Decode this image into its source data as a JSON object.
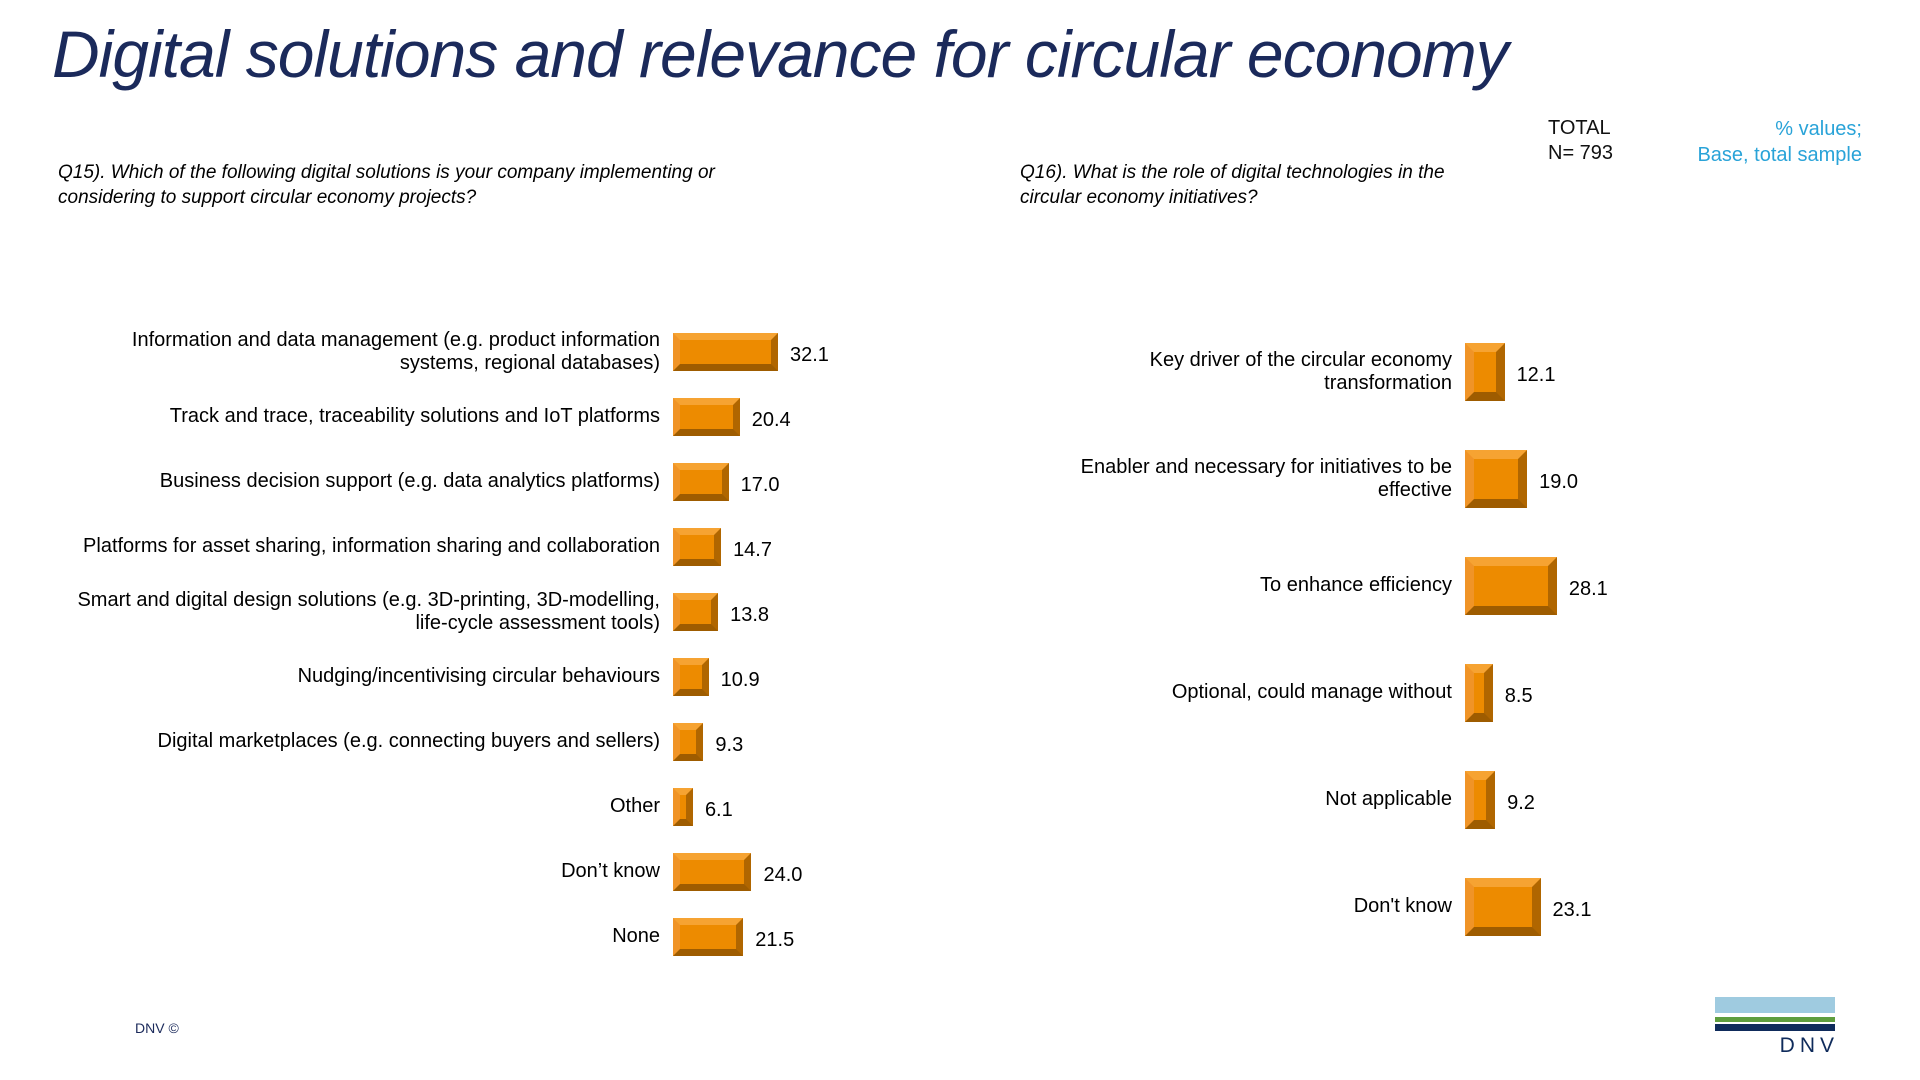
{
  "slide": {
    "title": "Digital solutions and relevance for circular economy",
    "total": {
      "label": "TOTAL",
      "n": "N= 793"
    },
    "base_note": {
      "line1": "% values;",
      "line2": "Base, total sample"
    },
    "footer": {
      "copyright": "DNV ©"
    },
    "logo": {
      "wordmark": "DNV",
      "stripes": [
        "light-blue",
        "green",
        "navy"
      ]
    }
  },
  "colors": {
    "title_navy": "#1b2a5b",
    "note_cyan": "#29a3d8",
    "bar_orange": "#ed8b00",
    "bar_bevel_light": "#f6a332",
    "bar_bevel_dark": "#9e5c00",
    "logo_light_blue": "#9fcbe0",
    "logo_green": "#5f9e3e",
    "logo_navy": "#0f2b5b"
  },
  "chart_data": [
    {
      "type": "bar",
      "orientation": "horizontal",
      "question": "Q15). Which of the following digital solutions is your company implementing or considering to support circular economy projects?",
      "categories": [
        "Information and data management (e.g. product information systems, regional databases)",
        "Track and trace, traceability solutions and IoT platforms",
        "Business decision support (e.g. data analytics platforms)",
        "Platforms for asset sharing, information sharing and collaboration",
        "Smart and digital design solutions (e.g. 3D-printing, 3D-modelling, life-cycle assessment tools)",
        "Nudging/incentivising circular behaviours",
        "Digital marketplaces (e.g. connecting buyers and sellers)",
        "Other",
        "Don’t know",
        "None"
      ],
      "values": [
        32.1,
        20.4,
        17.0,
        14.7,
        13.8,
        10.9,
        9.3,
        6.1,
        24.0,
        21.5
      ],
      "display_values": [
        "32.1",
        "20.4",
        "17.0",
        "14.7",
        "13.8",
        "10.9",
        "9.3",
        "6.1",
        "24.0",
        "21.5"
      ],
      "value_unit": "%",
      "axis": "none",
      "xlim": [
        0,
        35
      ]
    },
    {
      "type": "bar",
      "orientation": "horizontal",
      "question": "Q16). What is the role of digital technologies in the circular economy initiatives?",
      "categories": [
        "Key driver of the circular economy transformation",
        "Enabler and necessary for initiatives to be effective",
        "To enhance efficiency",
        "Optional, could manage without",
        "Not applicable",
        "Don't know"
      ],
      "values": [
        12.1,
        19.0,
        28.1,
        8.5,
        9.2,
        23.1
      ],
      "display_values": [
        "12.1",
        "19.0",
        "28.1",
        "8.5",
        "9.2",
        "23.1"
      ],
      "value_unit": "%",
      "axis": "none",
      "xlim": [
        0,
        35
      ]
    }
  ]
}
